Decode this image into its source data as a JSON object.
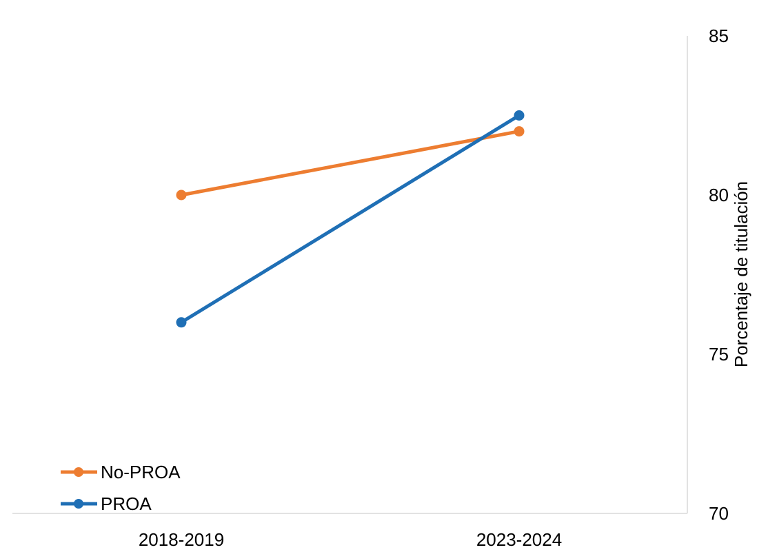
{
  "chart_data": {
    "type": "line",
    "title": "",
    "xlabel": "",
    "ylabel": "Porcentaje de titulación",
    "categories": [
      "2018-2019",
      "2023-2024"
    ],
    "ylim": [
      70,
      85
    ],
    "y_ticks": [
      70,
      75,
      80,
      85
    ],
    "y_axis_side": "right",
    "grid": false,
    "legend_position": "bottom-left",
    "series": [
      {
        "name": "No-PROA",
        "values": [
          80.0,
          82.0
        ],
        "color": "#ED7D31"
      },
      {
        "name": "PROA",
        "values": [
          76.0,
          82.5
        ],
        "color": "#1F6FB5"
      }
    ]
  }
}
